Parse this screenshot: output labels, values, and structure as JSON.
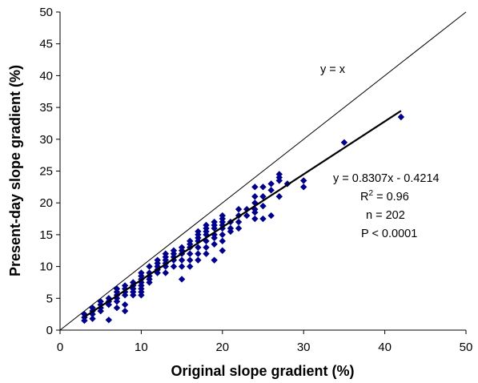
{
  "chart_data": {
    "type": "scatter",
    "xlabel": "Original slope gradient (%)",
    "ylabel": "Present-day slope gradient (%)",
    "xlim": [
      0,
      50
    ],
    "ylim": [
      0,
      50
    ],
    "x_ticks": [
      "0",
      "10",
      "20",
      "30",
      "40",
      "50"
    ],
    "y_ticks": [
      "0",
      "5",
      "10",
      "15",
      "20",
      "25",
      "30",
      "35",
      "40",
      "45",
      "50"
    ],
    "grid": false,
    "marker_color": "#00008B",
    "series": [
      {
        "points": [
          [
            3,
            1.5
          ],
          [
            3,
            2
          ],
          [
            3,
            2.5
          ],
          [
            4,
            1.8
          ],
          [
            4,
            2.5
          ],
          [
            4,
            3
          ],
          [
            4,
            3.5
          ],
          [
            5,
            3
          ],
          [
            5,
            3.5
          ],
          [
            5,
            4
          ],
          [
            5,
            4.5
          ],
          [
            6,
            1.6
          ],
          [
            6,
            4
          ],
          [
            6,
            4.5
          ],
          [
            6,
            5
          ],
          [
            7,
            3.5
          ],
          [
            7,
            4.5
          ],
          [
            7,
            5
          ],
          [
            7,
            5.5
          ],
          [
            7,
            6
          ],
          [
            7,
            6.5
          ],
          [
            8,
            3
          ],
          [
            8,
            4
          ],
          [
            8,
            5.5
          ],
          [
            8,
            6
          ],
          [
            8,
            6.5
          ],
          [
            8,
            7
          ],
          [
            9,
            5.5
          ],
          [
            9,
            6
          ],
          [
            9,
            6.5
          ],
          [
            9,
            7
          ],
          [
            9,
            7.5
          ],
          [
            10,
            5.5
          ],
          [
            10,
            6
          ],
          [
            10,
            6.5
          ],
          [
            10,
            7
          ],
          [
            10,
            7.5
          ],
          [
            10,
            8
          ],
          [
            10,
            8.5
          ],
          [
            10,
            9
          ],
          [
            11,
            7.5
          ],
          [
            11,
            8
          ],
          [
            11,
            8.5
          ],
          [
            11,
            9
          ],
          [
            11,
            10
          ],
          [
            12,
            9
          ],
          [
            12,
            9.5
          ],
          [
            12,
            10
          ],
          [
            12,
            10.5
          ],
          [
            12,
            11
          ],
          [
            13,
            9
          ],
          [
            13,
            10
          ],
          [
            13,
            10.5
          ],
          [
            13,
            11
          ],
          [
            13,
            11.5
          ],
          [
            13,
            12
          ],
          [
            14,
            10
          ],
          [
            14,
            11
          ],
          [
            14,
            11.5
          ],
          [
            14,
            12
          ],
          [
            14,
            12.5
          ],
          [
            15,
            8
          ],
          [
            15,
            10
          ],
          [
            15,
            11
          ],
          [
            15,
            12
          ],
          [
            15,
            12.5
          ],
          [
            15,
            13
          ],
          [
            16,
            10
          ],
          [
            16,
            11
          ],
          [
            16,
            12
          ],
          [
            16,
            13
          ],
          [
            16,
            13.5
          ],
          [
            16,
            14
          ],
          [
            17,
            11
          ],
          [
            17,
            12
          ],
          [
            17,
            13
          ],
          [
            17,
            14
          ],
          [
            17,
            14.5
          ],
          [
            17,
            15
          ],
          [
            17,
            15.5
          ],
          [
            18,
            12
          ],
          [
            18,
            13
          ],
          [
            18,
            14
          ],
          [
            18,
            15
          ],
          [
            18,
            15.5
          ],
          [
            18,
            16
          ],
          [
            18,
            16.5
          ],
          [
            19,
            11
          ],
          [
            19,
            13.5
          ],
          [
            19,
            14.5
          ],
          [
            19,
            15
          ],
          [
            19,
            16
          ],
          [
            19,
            16.5
          ],
          [
            19,
            17
          ],
          [
            20,
            12.5
          ],
          [
            20,
            14
          ],
          [
            20,
            15
          ],
          [
            20,
            16
          ],
          [
            20,
            16.5
          ],
          [
            20,
            17
          ],
          [
            20,
            17.5
          ],
          [
            20,
            18
          ],
          [
            21,
            15.5
          ],
          [
            21,
            16
          ],
          [
            21,
            17
          ],
          [
            22,
            16
          ],
          [
            22,
            17
          ],
          [
            22,
            18
          ],
          [
            22,
            19
          ],
          [
            23,
            18
          ],
          [
            23,
            19
          ],
          [
            24,
            17.5
          ],
          [
            24,
            18.5
          ],
          [
            24,
            19
          ],
          [
            24,
            20
          ],
          [
            24,
            21
          ],
          [
            24,
            22.5
          ],
          [
            25,
            17.5
          ],
          [
            25,
            19.5
          ],
          [
            25,
            21
          ],
          [
            25,
            22.5
          ],
          [
            26,
            18
          ],
          [
            26,
            22
          ],
          [
            26,
            23
          ],
          [
            27,
            21
          ],
          [
            27,
            23.5
          ],
          [
            27,
            24
          ],
          [
            27,
            24.5
          ],
          [
            28,
            23
          ],
          [
            30,
            22.5
          ],
          [
            30,
            23.5
          ],
          [
            35,
            29.5
          ],
          [
            42,
            33.5
          ]
        ]
      }
    ],
    "fit_line": {
      "slope": 0.8307,
      "intercept": -0.4214,
      "x_range": [
        3,
        42
      ]
    },
    "reference_line": {
      "label": "y = x",
      "x_range": [
        0,
        50
      ]
    },
    "annotations": [
      "y = 0.8307x - 0.4214",
      "R",
      "2",
      " = 0.96",
      "n = 202",
      "P < 0.0001"
    ]
  }
}
